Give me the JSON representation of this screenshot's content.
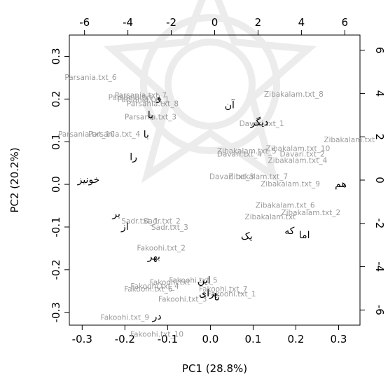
{
  "chart_data": {
    "type": "scatter",
    "title": "",
    "xlabel": "PC1 (28.8%)",
    "ylabel": "PC2 (20.2%)",
    "xlim": [
      -0.33,
      0.35
    ],
    "ylim": [
      -0.33,
      0.35
    ],
    "x_ticks": [
      "-0.3",
      "-0.2",
      "-0.1",
      "0.0",
      "0.1",
      "0.2",
      "0.3"
    ],
    "y_ticks": [
      "-0.3",
      "-0.2",
      "-0.1",
      "0.0",
      "0.1",
      "0.2",
      "0.3"
    ],
    "top_axis": {
      "range": [
        -6.7,
        6.7
      ],
      "ticks": [
        "-6",
        "-4",
        "-2",
        "0",
        "2",
        "4",
        "6"
      ]
    },
    "right_axis": {
      "range": [
        -6.7,
        6.7
      ],
      "ticks": [
        "-6",
        "-4",
        "-2",
        "0",
        "2",
        "4",
        "6"
      ]
    },
    "grid": false,
    "documents": [
      {
        "label": "Parsania.txt_6",
        "x": -0.28,
        "y": 0.25
      },
      {
        "label": "Parsania.txt_7",
        "x": -0.163,
        "y": 0.208
      },
      {
        "label": "Parsania.txt_9",
        "x": -0.178,
        "y": 0.203
      },
      {
        "label": "Parsania.txt_1",
        "x": -0.157,
        "y": 0.198
      },
      {
        "label": "Parsania.txt_8",
        "x": -0.135,
        "y": 0.188
      },
      {
        "label": "Parsania.txt_3",
        "x": -0.14,
        "y": 0.157
      },
      {
        "label": "Parsania.txt_10",
        "x": -0.29,
        "y": 0.117
      },
      {
        "label": "Parsania.txt_4",
        "x": -0.225,
        "y": 0.117
      },
      {
        "label": "Zibakalam.txt_8",
        "x": 0.195,
        "y": 0.21
      },
      {
        "label": "Davari.txt_1",
        "x": 0.12,
        "y": 0.141
      },
      {
        "label": "Zibakalam.txt",
        "x": 0.325,
        "y": 0.104
      },
      {
        "label": "Zibakalam.txt_10",
        "x": 0.205,
        "y": 0.083
      },
      {
        "label": "Zibakalam.txt_5",
        "x": 0.085,
        "y": 0.077
      },
      {
        "label": "Davari.txt_4",
        "x": 0.068,
        "y": 0.07
      },
      {
        "label": "Davari.txt_2",
        "x": 0.215,
        "y": 0.07
      },
      {
        "label": "Zibakalam.txt_4",
        "x": 0.204,
        "y": 0.055
      },
      {
        "label": "Davari.txt_3",
        "x": 0.05,
        "y": 0.017
      },
      {
        "label": "Zibakalam.txt_7",
        "x": 0.112,
        "y": 0.017
      },
      {
        "label": "Zibakalam.txt_9",
        "x": 0.187,
        "y": 0.0
      },
      {
        "label": "Zibakalam.txt_6",
        "x": 0.175,
        "y": -0.05
      },
      {
        "label": "Zibakalam.txt_2",
        "x": 0.235,
        "y": -0.067
      },
      {
        "label": "Zibakalam.txt",
        "x": 0.14,
        "y": -0.077
      },
      {
        "label": "Sadr.txt_1",
        "x": -0.165,
        "y": -0.087
      },
      {
        "label": "Sadr.txt_2",
        "x": -0.113,
        "y": -0.087
      },
      {
        "label": "Sadr.txt_3",
        "x": -0.095,
        "y": -0.102
      },
      {
        "label": "Fakoohi.txt_2",
        "x": -0.115,
        "y": -0.15
      },
      {
        "label": "Fakoohi.txt_5",
        "x": -0.04,
        "y": -0.226
      },
      {
        "label": "Fakoohi.txt",
        "x": -0.095,
        "y": -0.231
      },
      {
        "label": "Fakoohi.txt_4",
        "x": -0.13,
        "y": -0.24
      },
      {
        "label": "Fakoohi.txt_6",
        "x": -0.145,
        "y": -0.246
      },
      {
        "label": "Fakoohi.txt_7",
        "x": 0.03,
        "y": -0.246
      },
      {
        "label": "Fakoohi.txt_1",
        "x": 0.05,
        "y": -0.258
      },
      {
        "label": "Fakoohi.txt_3",
        "x": -0.065,
        "y": -0.27
      },
      {
        "label": "Fakoohi.txt_9",
        "x": -0.2,
        "y": -0.313
      },
      {
        "label": "Fakoohi.txt_10",
        "x": -0.125,
        "y": -0.352
      }
    ],
    "words": [
      {
        "label": "آن",
        "x": 0.045,
        "y": 0.185
      },
      {
        "label": "دیگر",
        "x": 0.115,
        "y": 0.145
      },
      {
        "label": "و",
        "x": -0.12,
        "y": 0.203
      },
      {
        "label": "با",
        "x": -0.14,
        "y": 0.162
      },
      {
        "label": "با",
        "x": -0.15,
        "y": 0.116
      },
      {
        "label": "را",
        "x": -0.18,
        "y": 0.063
      },
      {
        "label": "خونیز",
        "x": -0.285,
        "y": 0.01
      },
      {
        "label": "هم",
        "x": 0.305,
        "y": 0.0
      },
      {
        "label": "بر",
        "x": -0.22,
        "y": -0.07
      },
      {
        "label": "از",
        "x": -0.2,
        "y": -0.1
      },
      {
        "label": "یک",
        "x": 0.085,
        "y": -0.122
      },
      {
        "label": "که",
        "x": 0.185,
        "y": -0.11
      },
      {
        "label": "اما",
        "x": 0.22,
        "y": -0.12
      },
      {
        "label": "بهر",
        "x": -0.132,
        "y": -0.17
      },
      {
        "label": "این",
        "x": -0.015,
        "y": -0.226
      },
      {
        "label": "برای",
        "x": -0.005,
        "y": -0.256
      },
      {
        "label": "تا",
        "x": 0.015,
        "y": -0.265
      },
      {
        "label": "در",
        "x": -0.125,
        "y": -0.31
      }
    ],
    "colors": {
      "documents": "#9a9a9a",
      "words": "#000000",
      "axes": "#000000"
    }
  }
}
